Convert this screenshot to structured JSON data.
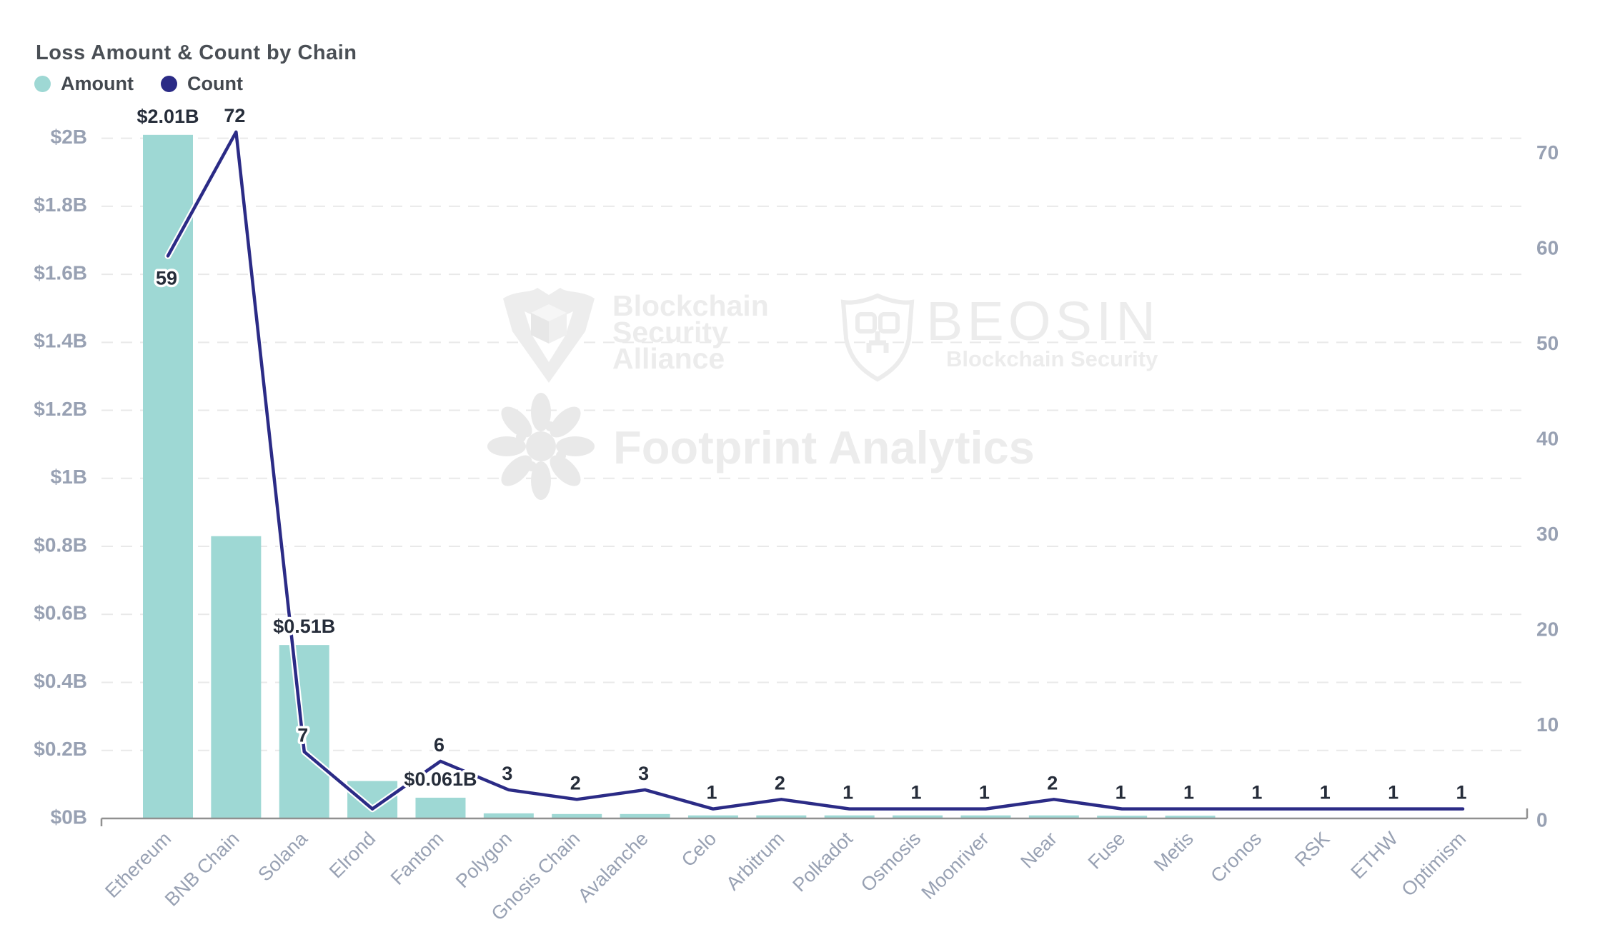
{
  "title": "Loss Amount & Count by Chain",
  "legend": {
    "items": [
      {
        "label": "Amount",
        "color": "#9ED8D4"
      },
      {
        "label": "Count",
        "color": "#2B2B86"
      }
    ]
  },
  "watermarks": {
    "alliance": {
      "line1": "Blockchain",
      "line2": "Security",
      "line3": "Alliance"
    },
    "beosin": {
      "name": "BEOSIN",
      "tagline": "Blockchain Security"
    },
    "footprint": {
      "name": "Footprint Analytics"
    }
  },
  "colors": {
    "bar": "#9ED8D4",
    "line": "#2B2B86",
    "axis_label": "#98A1B3",
    "grid": "#E9E9E9",
    "axis_line": "#909090",
    "data_label": "#262D3A",
    "watermark": "#ECECEC"
  },
  "chart_data": {
    "type": "bar+line dual-axis",
    "title": "Loss Amount & Count by Chain",
    "categories": [
      "Ethereum",
      "BNB Chain",
      "Solana",
      "Elrond",
      "Fantom",
      "Polygon",
      "Gnosis Chain",
      "Avalanche",
      "Celo",
      "Arbitrum",
      "Polkadot",
      "Osmosis",
      "Moonriver",
      "Near",
      "Fuse",
      "Metis",
      "Cronos",
      "RSK",
      "ETHW",
      "Optimism"
    ],
    "series": [
      {
        "name": "Amount",
        "type": "bar",
        "axis": "left",
        "unit": "$B",
        "color": "#9ED8D4",
        "values": [
          2.01,
          0.83,
          0.51,
          0.11,
          0.061,
          0.015,
          0.013,
          0.013,
          0.009,
          0.009,
          0.009,
          0.009,
          0.009,
          0.009,
          0.008,
          0.008,
          0.001,
          0.001,
          0.001,
          0.001
        ],
        "labels": [
          "$2.01B",
          null,
          "$0.51B",
          null,
          "$0.061B",
          null,
          null,
          null,
          null,
          null,
          null,
          null,
          null,
          null,
          null,
          null,
          null,
          null,
          null,
          null
        ]
      },
      {
        "name": "Count",
        "type": "line",
        "axis": "right",
        "color": "#2B2B86",
        "values": [
          59,
          72,
          7,
          1,
          6,
          3,
          2,
          3,
          1,
          2,
          1,
          1,
          1,
          2,
          1,
          1,
          1,
          1,
          1,
          1
        ],
        "labels": [
          "59",
          "72",
          "7",
          null,
          "6",
          "3",
          "2",
          "3",
          "1",
          "2",
          "1",
          "1",
          "1",
          "2",
          "1",
          "1",
          "1",
          "1",
          "1",
          "1"
        ],
        "label_below_indices": [
          0
        ]
      }
    ],
    "left_axis": {
      "ticks": [
        "$0B",
        "$0.2B",
        "$0.4B",
        "$0.6B",
        "$0.8B",
        "$1B",
        "$1.2B",
        "$1.4B",
        "$1.6B",
        "$1.8B",
        "$2B"
      ],
      "min": 0,
      "max": 2.0,
      "tick_step": 0.2
    },
    "right_axis": {
      "ticks": [
        "0",
        "10",
        "20",
        "30",
        "40",
        "50",
        "60",
        "70"
      ],
      "min": 0,
      "tick_step": 10
    },
    "grid": "horizontal dashed",
    "legend_position": "top-left"
  }
}
